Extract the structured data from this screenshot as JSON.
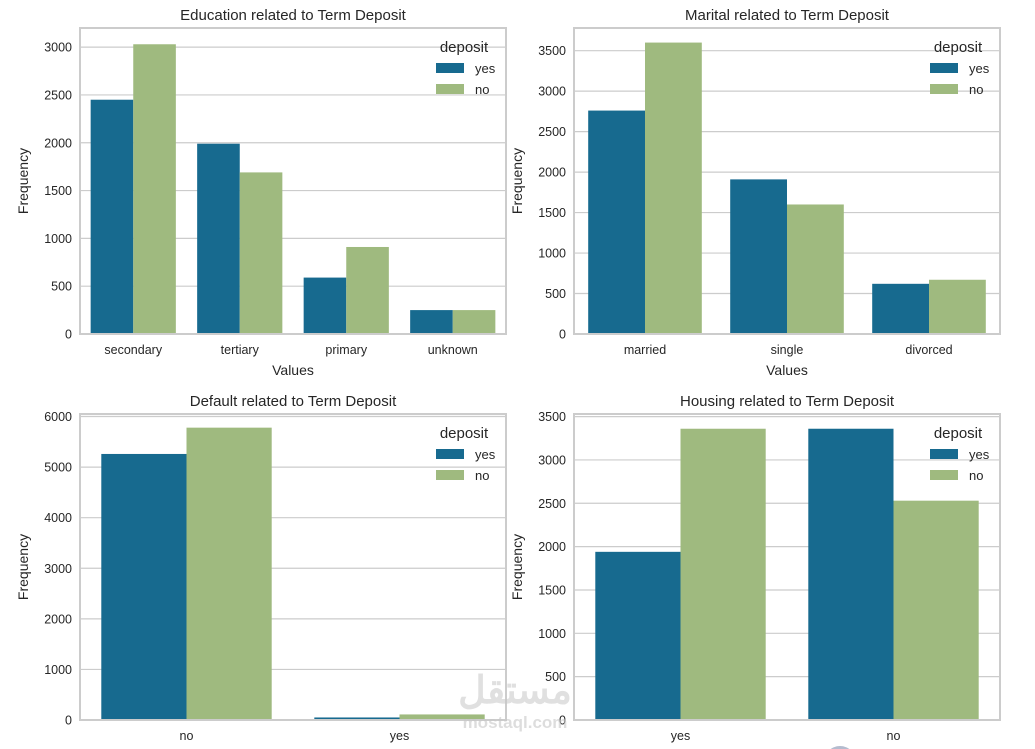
{
  "colors": {
    "yes": "#176a8f",
    "no": "#9fba7f"
  },
  "watermark": {
    "text": "مستقل",
    "sub": "mostaql.com"
  },
  "chart_data": [
    {
      "type": "bar",
      "title": "Education related to Term Deposit",
      "xlabel": "Values",
      "ylabel": "Frequency",
      "categories": [
        "secondary",
        "tertiary",
        "primary",
        "unknown"
      ],
      "series": [
        {
          "name": "yes",
          "values": [
            2450,
            1990,
            590,
            250
          ]
        },
        {
          "name": "no",
          "values": [
            3030,
            1690,
            910,
            250
          ]
        }
      ],
      "ylim": [
        0,
        3200
      ],
      "yticks": [
        0,
        500,
        1000,
        1500,
        2000,
        2500,
        3000
      ],
      "legend": {
        "title": "deposit",
        "entries": [
          "yes",
          "no"
        ],
        "placement": "top-right"
      },
      "grid": true
    },
    {
      "type": "bar",
      "title": "Marital related to Term Deposit",
      "xlabel": "Values",
      "ylabel": "Frequency",
      "categories": [
        "married",
        "single",
        "divorced"
      ],
      "series": [
        {
          "name": "yes",
          "values": [
            2760,
            1910,
            620
          ]
        },
        {
          "name": "no",
          "values": [
            3600,
            1600,
            670
          ]
        }
      ],
      "ylim": [
        0,
        3780
      ],
      "yticks": [
        0,
        500,
        1000,
        1500,
        2000,
        2500,
        3000,
        3500
      ],
      "legend": {
        "title": "deposit",
        "entries": [
          "yes",
          "no"
        ],
        "placement": "top-right"
      },
      "grid": true
    },
    {
      "type": "bar",
      "title": "Default related to Term Deposit",
      "xlabel": "",
      "ylabel": "Frequency",
      "categories": [
        "no",
        "yes"
      ],
      "series": [
        {
          "name": "yes",
          "values": [
            5260,
            50
          ]
        },
        {
          "name": "no",
          "values": [
            5780,
            110
          ]
        }
      ],
      "ylim": [
        0,
        6050
      ],
      "yticks": [
        0,
        1000,
        2000,
        3000,
        4000,
        5000,
        6000
      ],
      "legend": {
        "title": "deposit",
        "entries": [
          "yes",
          "no"
        ],
        "placement": "top-right"
      },
      "grid": true
    },
    {
      "type": "bar",
      "title": "Housing related to Term Deposit",
      "xlabel": "",
      "ylabel": "Frequency",
      "categories": [
        "yes",
        "no"
      ],
      "series": [
        {
          "name": "yes",
          "values": [
            1940,
            3360
          ]
        },
        {
          "name": "no",
          "values": [
            3360,
            2530
          ]
        }
      ],
      "ylim": [
        0,
        3530
      ],
      "yticks": [
        0,
        500,
        1000,
        1500,
        2000,
        2500,
        3000,
        3500
      ],
      "legend": {
        "title": "deposit",
        "entries": [
          "yes",
          "no"
        ],
        "placement": "top-right"
      },
      "grid": true
    }
  ]
}
